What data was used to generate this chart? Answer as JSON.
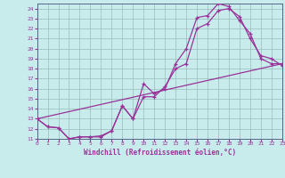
{
  "xlabel": "Windchill (Refroidissement éolien,°C)",
  "bg_color": "#c8ecec",
  "line_color": "#993399",
  "grid_color": "#99bbbb",
  "xlim": [
    0,
    23
  ],
  "ylim": [
    11,
    24.5
  ],
  "yticks": [
    11,
    12,
    13,
    14,
    15,
    16,
    17,
    18,
    19,
    20,
    21,
    22,
    23,
    24
  ],
  "xticks": [
    0,
    1,
    2,
    3,
    4,
    5,
    6,
    7,
    8,
    9,
    10,
    11,
    12,
    13,
    14,
    15,
    16,
    17,
    18,
    19,
    20,
    21,
    22,
    23
  ],
  "curve1_x": [
    0,
    1,
    2,
    3,
    4,
    5,
    6,
    7,
    8,
    9,
    10,
    11,
    12,
    13,
    14,
    15,
    16,
    17,
    18,
    19,
    20,
    21,
    22,
    23
  ],
  "curve1_y": [
    13.0,
    12.2,
    12.1,
    11.0,
    11.2,
    11.2,
    11.2,
    11.8,
    14.3,
    13.0,
    16.5,
    15.5,
    16.0,
    18.5,
    20.0,
    23.1,
    23.3,
    24.5,
    24.2,
    22.8,
    21.5,
    19.0,
    18.5,
    18.5
  ],
  "curve2_x": [
    0,
    1,
    2,
    3,
    4,
    5,
    6,
    7,
    8,
    9,
    10,
    11,
    12,
    13,
    14,
    15,
    16,
    17,
    18,
    19,
    20,
    21,
    22,
    23
  ],
  "curve2_y": [
    13.0,
    12.2,
    12.1,
    11.0,
    11.2,
    11.2,
    11.3,
    11.8,
    14.3,
    13.0,
    15.2,
    15.2,
    16.2,
    18.0,
    18.5,
    22.0,
    22.5,
    23.8,
    24.0,
    23.2,
    21.0,
    19.3,
    19.0,
    18.3
  ],
  "curve3_x": [
    0,
    23
  ],
  "curve3_y": [
    13.0,
    18.5
  ]
}
